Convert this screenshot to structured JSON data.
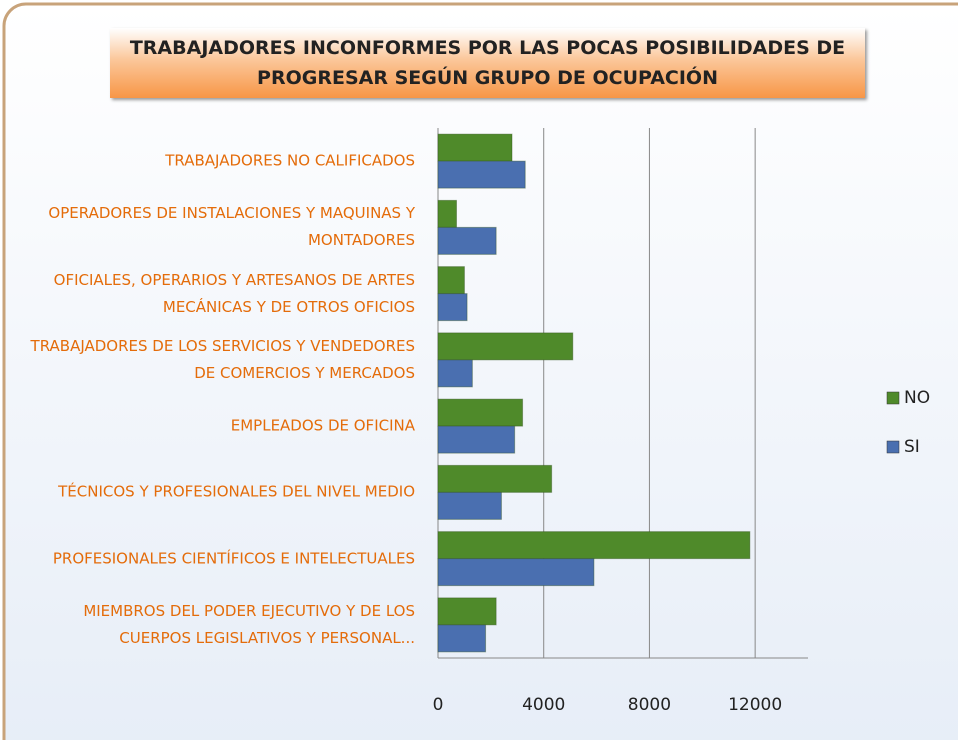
{
  "chart_data": {
    "type": "bar",
    "orientation": "horizontal",
    "title": "TRABAJADORES INCONFORMES POR LAS POCAS POSIBILIDADES DE PROGRESAR SEGÚN GRUPO DE OCUPACIÓN",
    "categories": [
      "TRABAJADORES NO CALIFICADOS",
      "OPERADORES DE INSTALACIONES Y MAQUINAS Y MONTADORES",
      "OFICIALES, OPERARIOS Y ARTESANOS DE ARTES MECÁNICAS Y DE OTROS OFICIOS",
      "TRABAJADORES DE LOS SERVICIOS Y VENDEDORES DE COMERCIOS Y MERCADOS",
      "EMPLEADOS DE OFICINA",
      "TÉCNICOS Y PROFESIONALES DEL NIVEL MEDIO",
      "PROFESIONALES CIENTÍFICOS E INTELECTUALES",
      "MIEMBROS DEL PODER EJECUTIVO Y DE LOS CUERPOS LEGISLATIVOS Y PERSONAL..."
    ],
    "series": [
      {
        "name": "NO",
        "color": "#4f8a2a",
        "values": [
          2800,
          700,
          1000,
          5100,
          3200,
          4300,
          11800,
          2200
        ]
      },
      {
        "name": "SI",
        "color": "#4a6fb0",
        "values": [
          3300,
          2200,
          1100,
          1300,
          2900,
          2400,
          5900,
          1800
        ]
      }
    ],
    "xlim": [
      0,
      14000
    ],
    "xticks": [
      0,
      4000,
      8000,
      12000
    ],
    "grid": true,
    "legend": "right"
  }
}
